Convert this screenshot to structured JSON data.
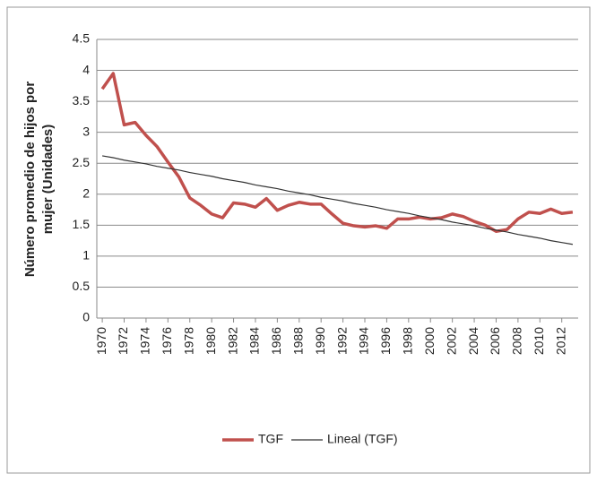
{
  "chart_data": {
    "type": "line",
    "y_label": [
      "Número promedio de hijos por",
      "mujer (Unidades)"
    ],
    "x": [
      1970,
      1971,
      1972,
      1973,
      1974,
      1975,
      1976,
      1977,
      1978,
      1979,
      1980,
      1981,
      1982,
      1983,
      1984,
      1985,
      1986,
      1987,
      1988,
      1989,
      1990,
      1991,
      1992,
      1993,
      1994,
      1995,
      1996,
      1997,
      1998,
      1999,
      2000,
      2001,
      2002,
      2003,
      2004,
      2005,
      2006,
      2007,
      2008,
      2009,
      2010,
      2011,
      2012,
      2013
    ],
    "xlim": [
      1969.5,
      2013.5
    ],
    "xticks": [
      1970,
      1972,
      1974,
      1976,
      1978,
      1980,
      1982,
      1984,
      1986,
      1988,
      1990,
      1992,
      1994,
      1996,
      1998,
      2000,
      2002,
      2004,
      2006,
      2008,
      2010,
      2012
    ],
    "ylim": [
      0,
      4.5
    ],
    "yticks": [
      0,
      0.5,
      1,
      1.5,
      2,
      2.5,
      3,
      3.5,
      4,
      4.5
    ],
    "grid": true,
    "legend": "bottom",
    "series": [
      {
        "name": "TGF",
        "color": "#c0504d",
        "width": 3.5,
        "values": [
          3.7,
          3.95,
          3.12,
          3.16,
          2.95,
          2.77,
          2.52,
          2.28,
          1.94,
          1.82,
          1.68,
          1.62,
          1.86,
          1.84,
          1.79,
          1.93,
          1.74,
          1.82,
          1.87,
          1.84,
          1.84,
          1.68,
          1.53,
          1.49,
          1.47,
          1.49,
          1.45,
          1.6,
          1.6,
          1.63,
          1.6,
          1.62,
          1.68,
          1.64,
          1.56,
          1.5,
          1.4,
          1.43,
          1.6,
          1.71,
          1.69,
          1.76,
          1.69,
          1.71
        ]
      },
      {
        "name": "Lineal (TGF)",
        "color": "#333333",
        "width": 1.2,
        "values": [
          2.62,
          2.59,
          2.55,
          2.52,
          2.49,
          2.45,
          2.42,
          2.39,
          2.35,
          2.32,
          2.29,
          2.25,
          2.22,
          2.19,
          2.15,
          2.12,
          2.09,
          2.05,
          2.02,
          1.99,
          1.95,
          1.92,
          1.89,
          1.85,
          1.82,
          1.79,
          1.75,
          1.72,
          1.69,
          1.65,
          1.62,
          1.59,
          1.55,
          1.52,
          1.49,
          1.45,
          1.42,
          1.39,
          1.35,
          1.32,
          1.29,
          1.25,
          1.22,
          1.19
        ]
      }
    ]
  }
}
